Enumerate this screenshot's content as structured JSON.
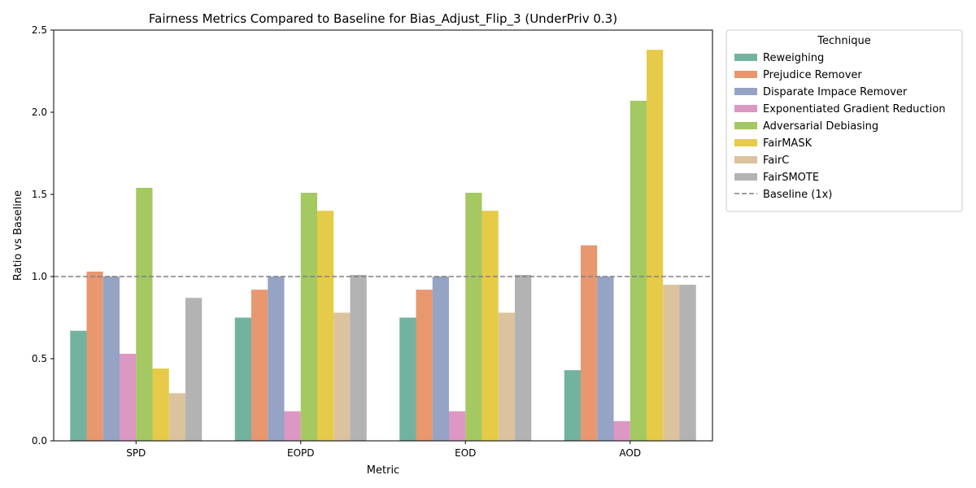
{
  "chart_data": {
    "type": "bar",
    "title": "Fairness Metrics Compared to Baseline for Bias_Adjust_Flip_3 (UnderPriv 0.3)",
    "xlabel": "Metric",
    "ylabel": "Ratio vs Baseline",
    "ylim": [
      0,
      2.5
    ],
    "yticks": [
      "0.0",
      "0.5",
      "1.0",
      "1.5",
      "2.0",
      "2.5"
    ],
    "categories": [
      "SPD",
      "EOPD",
      "EOD",
      "AOD"
    ],
    "legend_title": "Technique",
    "legend_position": "outside-right",
    "baseline": {
      "value": 1.0,
      "label": "Baseline (1x)",
      "color": "#808080"
    },
    "series": [
      {
        "name": "Reweighing",
        "color": "#72b39f",
        "values": [
          0.67,
          0.75,
          0.75,
          0.43
        ]
      },
      {
        "name": "Prejudice Remover",
        "color": "#e8976f",
        "values": [
          1.03,
          0.92,
          0.92,
          1.19
        ]
      },
      {
        "name": "Disparate Impace Remover",
        "color": "#95a3c4",
        "values": [
          1.0,
          1.0,
          1.0,
          1.0
        ]
      },
      {
        "name": "Exponentiated Gradient Reduction",
        "color": "#dc97c3",
        "values": [
          0.53,
          0.18,
          0.18,
          0.12
        ]
      },
      {
        "name": "Adversarial Debiasing",
        "color": "#a4c862",
        "values": [
          1.54,
          1.51,
          1.51,
          2.07
        ]
      },
      {
        "name": "FairMASK",
        "color": "#e6cb48",
        "values": [
          0.44,
          1.4,
          1.4,
          2.38
        ]
      },
      {
        "name": "FairC",
        "color": "#dbc39d",
        "values": [
          0.29,
          0.78,
          0.78,
          0.95
        ]
      },
      {
        "name": "FairSMOTE",
        "color": "#b3b3b3",
        "values": [
          0.87,
          1.01,
          1.01,
          0.95
        ]
      }
    ]
  }
}
